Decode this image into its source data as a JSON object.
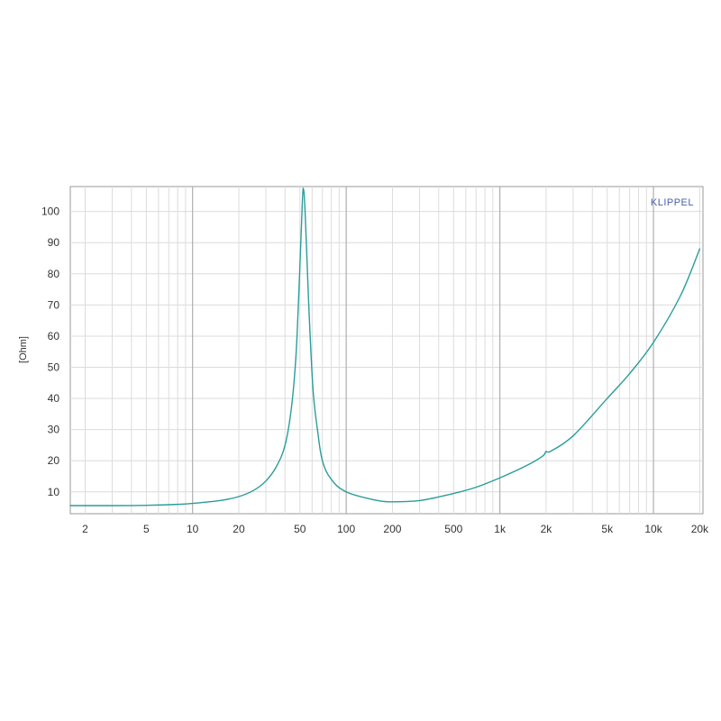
{
  "chart_data": {
    "type": "line",
    "title": "",
    "brand": "KLIPPEL",
    "ylabel": "[Ohm]",
    "xlabel": "",
    "x_scale": "log",
    "xlim": [
      1.6,
      21000
    ],
    "ylim": [
      3,
      108
    ],
    "grid": true,
    "legend": "none",
    "x_ticks": [
      {
        "value": 2,
        "label": "2"
      },
      {
        "value": 5,
        "label": "5"
      },
      {
        "value": 10,
        "label": "10"
      },
      {
        "value": 20,
        "label": "20"
      },
      {
        "value": 50,
        "label": "50"
      },
      {
        "value": 100,
        "label": "100"
      },
      {
        "value": 200,
        "label": "200"
      },
      {
        "value": 500,
        "label": "500"
      },
      {
        "value": 1000,
        "label": "1k"
      },
      {
        "value": 2000,
        "label": "2k"
      },
      {
        "value": 5000,
        "label": "5k"
      },
      {
        "value": 10000,
        "label": "10k"
      },
      {
        "value": 20000,
        "label": "20k"
      }
    ],
    "y_ticks": [
      10,
      20,
      30,
      40,
      50,
      60,
      70,
      80,
      90,
      100
    ],
    "series": [
      {
        "color": "#2a9d9a",
        "x": [
          1.6,
          3,
          5,
          8,
          10,
          15,
          20,
          25,
          30,
          35,
          40,
          44,
          47,
          49,
          51,
          52.5,
          54,
          56,
          58,
          61,
          65,
          70,
          80,
          100,
          150,
          200,
          300,
          500,
          700,
          1000,
          1500,
          1900,
          2000,
          2100,
          3000,
          5000,
          7000,
          10000,
          15000,
          20000
        ],
        "y": [
          5.6,
          5.6,
          5.7,
          6.0,
          6.3,
          7.2,
          8.5,
          10.5,
          13.5,
          18.0,
          25.0,
          37.0,
          53.0,
          72.0,
          94.0,
          107.5,
          100.0,
          80.0,
          62.0,
          42.0,
          30.0,
          20.0,
          14.0,
          10.0,
          7.5,
          6.8,
          7.2,
          9.5,
          11.5,
          14.5,
          18.5,
          21.5,
          23.0,
          22.8,
          28.0,
          40.0,
          48.0,
          58.0,
          73.0,
          88.0
        ]
      }
    ]
  }
}
